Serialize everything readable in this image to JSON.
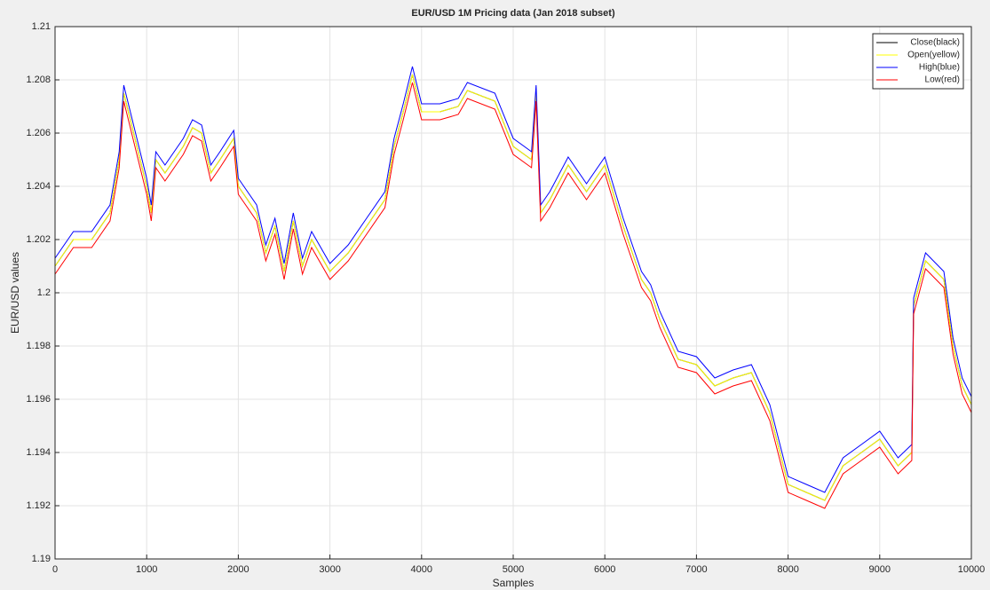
{
  "chart_data": {
    "type": "line",
    "title": "EUR/USD 1M Pricing data (Jan 2018 subset)",
    "x_label": "Samples",
    "y_label": "EUR/USD values",
    "x": [
      0,
      200,
      400,
      600,
      700,
      750,
      800,
      1000,
      1050,
      1100,
      1200,
      1400,
      1500,
      1600,
      1700,
      1800,
      1950,
      2000,
      2200,
      2300,
      2400,
      2500,
      2600,
      2700,
      2800,
      3000,
      3200,
      3400,
      3600,
      3700,
      3800,
      3900,
      4000,
      4200,
      4400,
      4500,
      4800,
      5000,
      5200,
      5250,
      5300,
      5400,
      5600,
      5800,
      6000,
      6200,
      6400,
      6500,
      6600,
      6800,
      7000,
      7200,
      7400,
      7600,
      7800,
      8000,
      8200,
      8400,
      8600,
      8800,
      9000,
      9200,
      9350,
      9370,
      9500,
      9700,
      9800,
      9900,
      10000
    ],
    "series": [
      {
        "name": "Close(black)",
        "color": "#000000",
        "values": [
          1.201,
          1.202,
          1.202,
          1.203,
          1.205,
          1.2075,
          1.2068,
          1.204,
          1.203,
          1.205,
          1.2045,
          1.2055,
          1.2062,
          1.206,
          1.2045,
          1.205,
          1.2058,
          1.204,
          1.203,
          1.2015,
          1.2025,
          1.2008,
          1.2027,
          1.201,
          1.202,
          1.2008,
          1.2015,
          1.2025,
          1.2035,
          1.2055,
          1.2068,
          1.2082,
          1.2068,
          1.2068,
          1.207,
          1.2076,
          1.2072,
          1.2055,
          1.205,
          1.2075,
          1.203,
          1.2035,
          1.2048,
          1.2038,
          1.2048,
          1.2025,
          1.2005,
          1.2,
          1.199,
          1.1975,
          1.1973,
          1.1965,
          1.1968,
          1.197,
          1.1955,
          1.1928,
          1.1925,
          1.1922,
          1.1935,
          1.194,
          1.1945,
          1.1935,
          1.194,
          1.1995,
          1.2012,
          1.2005,
          1.198,
          1.1965,
          1.1958
        ]
      },
      {
        "name": "Open(yellow)",
        "color": "#ffff00",
        "values": [
          1.201,
          1.202,
          1.202,
          1.203,
          1.205,
          1.2075,
          1.2068,
          1.204,
          1.203,
          1.205,
          1.2045,
          1.2055,
          1.2062,
          1.206,
          1.2045,
          1.205,
          1.2058,
          1.204,
          1.203,
          1.2015,
          1.2025,
          1.2008,
          1.2027,
          1.201,
          1.202,
          1.2008,
          1.2015,
          1.2025,
          1.2035,
          1.2055,
          1.2068,
          1.2082,
          1.2068,
          1.2068,
          1.207,
          1.2076,
          1.2072,
          1.2055,
          1.205,
          1.2075,
          1.203,
          1.2035,
          1.2048,
          1.2038,
          1.2048,
          1.2025,
          1.2005,
          1.2,
          1.199,
          1.1975,
          1.1973,
          1.1965,
          1.1968,
          1.197,
          1.1955,
          1.1928,
          1.1925,
          1.1922,
          1.1935,
          1.194,
          1.1945,
          1.1935,
          1.194,
          1.1995,
          1.2012,
          1.2005,
          1.198,
          1.1965,
          1.1958
        ]
      },
      {
        "name": "High(blue)",
        "color": "#0000ff",
        "values": [
          1.2013,
          1.2023,
          1.2023,
          1.2033,
          1.2053,
          1.2078,
          1.2071,
          1.2043,
          1.2033,
          1.2053,
          1.2048,
          1.2058,
          1.2065,
          1.2063,
          1.2048,
          1.2053,
          1.2061,
          1.2043,
          1.2033,
          1.2018,
          1.2028,
          1.2011,
          1.203,
          1.2013,
          1.2023,
          1.2011,
          1.2018,
          1.2028,
          1.2038,
          1.2058,
          1.2071,
          1.2085,
          1.2071,
          1.2071,
          1.2073,
          1.2079,
          1.2075,
          1.2058,
          1.2053,
          1.2078,
          1.2033,
          1.2038,
          1.2051,
          1.2041,
          1.2051,
          1.2028,
          1.2008,
          1.2003,
          1.1993,
          1.1978,
          1.1976,
          1.1968,
          1.1971,
          1.1973,
          1.1958,
          1.1931,
          1.1928,
          1.1925,
          1.1938,
          1.1943,
          1.1948,
          1.1938,
          1.1943,
          1.1998,
          1.2015,
          1.2008,
          1.1983,
          1.1968,
          1.1961
        ]
      },
      {
        "name": "Low(red)",
        "color": "#ff0000",
        "values": [
          1.2007,
          1.2017,
          1.2017,
          1.2027,
          1.2047,
          1.2072,
          1.2065,
          1.2037,
          1.2027,
          1.2047,
          1.2042,
          1.2052,
          1.2059,
          1.2057,
          1.2042,
          1.2047,
          1.2055,
          1.2037,
          1.2027,
          1.2012,
          1.2022,
          1.2005,
          1.2024,
          1.2007,
          1.2017,
          1.2005,
          1.2012,
          1.2022,
          1.2032,
          1.2052,
          1.2065,
          1.2079,
          1.2065,
          1.2065,
          1.2067,
          1.2073,
          1.2069,
          1.2052,
          1.2047,
          1.2072,
          1.2027,
          1.2032,
          1.2045,
          1.2035,
          1.2045,
          1.2022,
          1.2002,
          1.1997,
          1.1987,
          1.1972,
          1.197,
          1.1962,
          1.1965,
          1.1967,
          1.1952,
          1.1925,
          1.1922,
          1.1919,
          1.1932,
          1.1937,
          1.1942,
          1.1932,
          1.1937,
          1.1992,
          1.2009,
          1.2002,
          1.1977,
          1.1962,
          1.1955
        ]
      }
    ],
    "xlim": [
      0,
      10000
    ],
    "xticks": [
      0,
      1000,
      2000,
      3000,
      4000,
      5000,
      6000,
      7000,
      8000,
      9000,
      10000
    ],
    "ylim": [
      1.19,
      1.21
    ],
    "yticks": [
      1.19,
      1.192,
      1.194,
      1.196,
      1.198,
      1.2,
      1.202,
      1.204,
      1.206,
      1.208,
      1.21
    ],
    "grid": true,
    "legend": "top-right"
  }
}
